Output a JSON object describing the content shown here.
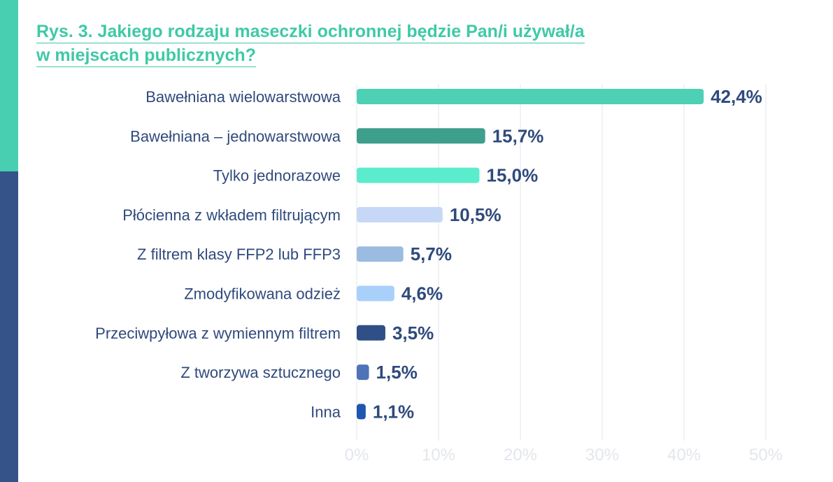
{
  "title_lines": [
    "Rys. 3. Jakiego rodzaju maseczki ochronnej będzie Pan/i używał/a",
    "w miejscach publicznych?"
  ],
  "chart_data": {
    "type": "bar",
    "orientation": "horizontal",
    "title": "Rys. 3. Jakiego rodzaju maseczki ochronnej będzie Pan/i używał/a w miejscach publicznych?",
    "categories": [
      "Bawełniana wielowarstwowa",
      "Bawełniana – jednowarstwowa",
      "Tylko jednorazowe",
      "Płócienna z wkładem filtrującym",
      "Z filtrem klasy FFP2 lub FFP3",
      "Zmodyfikowana odzież",
      "Przeciwpyłowa z wymiennym filtrem",
      "Z tworzywa sztucznego",
      "Inna"
    ],
    "values": [
      42.4,
      15.7,
      15.0,
      10.5,
      5.7,
      4.6,
      3.5,
      1.5,
      1.1
    ],
    "value_labels": [
      "42,4%",
      "15,7%",
      "15,0%",
      "10,5%",
      "5,7%",
      "4,6%",
      "3,5%",
      "1,5%",
      "1,1%"
    ],
    "colors": [
      "#4dd0b4",
      "#3d9f8c",
      "#5beccd",
      "#c6d8f6",
      "#9bbbe0",
      "#a9d0fb",
      "#2f4f86",
      "#4e73b8",
      "#1e56b0"
    ],
    "xlim": [
      0,
      50
    ],
    "xticks": [
      0,
      10,
      20,
      30,
      40,
      50
    ],
    "xtick_labels": [
      "0%",
      "10%",
      "20%",
      "30%",
      "40%",
      "50%"
    ],
    "grid": true,
    "xlabel": "",
    "ylabel": ""
  },
  "colors": {
    "accent_teal": "#48cfb2",
    "accent_navy": "#355289",
    "text": "#2f4a7c"
  }
}
